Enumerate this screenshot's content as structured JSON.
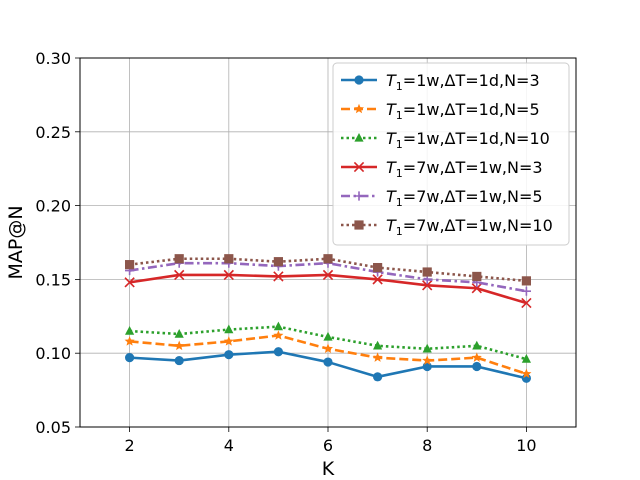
{
  "chart_data": {
    "type": "line",
    "xlabel": "K",
    "ylabel": "MAP@N",
    "xlim": [
      1,
      11
    ],
    "ylim": [
      0.05,
      0.3
    ],
    "grid": true,
    "legend_position": "top-right",
    "x_ticks": [
      "2",
      "4",
      "6",
      "8",
      "10"
    ],
    "y_ticks": [
      "0.05",
      "0.10",
      "0.15",
      "0.20",
      "0.25",
      "0.30"
    ],
    "x": [
      2,
      3,
      4,
      5,
      6,
      7,
      8,
      9,
      10
    ],
    "series": [
      {
        "name": "T1=1w,ΔT=1d,N=3",
        "legend": {
          "t": "T",
          "sub": "1",
          "rest": "=1w,ΔT=1d,N=3"
        },
        "color": "#1f77b4",
        "dash": "solid",
        "marker": "circle",
        "values": [
          0.097,
          0.095,
          0.099,
          0.101,
          0.094,
          0.084,
          0.091,
          0.091,
          0.083
        ]
      },
      {
        "name": "T1=1w,ΔT=1d,N=5",
        "legend": {
          "t": "T",
          "sub": "1",
          "rest": "=1w,ΔT=1d,N=5"
        },
        "color": "#ff7f0e",
        "dash": "dashed",
        "marker": "star",
        "values": [
          0.108,
          0.105,
          0.108,
          0.112,
          0.103,
          0.097,
          0.095,
          0.097,
          0.086
        ]
      },
      {
        "name": "T1=1w,ΔT=1d,N=10",
        "legend": {
          "t": "T",
          "sub": "1",
          "rest": "=1w,ΔT=1d,N=10"
        },
        "color": "#2ca02c",
        "dash": "dotted",
        "marker": "triangle",
        "values": [
          0.115,
          0.113,
          0.116,
          0.118,
          0.111,
          0.105,
          0.103,
          0.105,
          0.096
        ]
      },
      {
        "name": "T1=7w,ΔT=1w,N=3",
        "legend": {
          "t": "T",
          "sub": "1",
          "rest": "=7w,ΔT=1w,N=3"
        },
        "color": "#d62728",
        "dash": "solid",
        "marker": "x",
        "values": [
          0.148,
          0.153,
          0.153,
          0.152,
          0.153,
          0.15,
          0.146,
          0.144,
          0.134
        ]
      },
      {
        "name": "T1=7w,ΔT=1w,N=5",
        "legend": {
          "t": "T",
          "sub": "1",
          "rest": "=7w,ΔT=1w,N=5"
        },
        "color": "#9467bd",
        "dash": "dashdot",
        "marker": "plus",
        "values": [
          0.156,
          0.161,
          0.161,
          0.159,
          0.161,
          0.155,
          0.15,
          0.148,
          0.142
        ]
      },
      {
        "name": "T1=7w,ΔT=1w,N=10",
        "legend": {
          "t": "T",
          "sub": "1",
          "rest": "=7w,ΔT=1w,N=10"
        },
        "color": "#8c564b",
        "dash": "dotted",
        "marker": "square",
        "values": [
          0.16,
          0.164,
          0.164,
          0.162,
          0.164,
          0.158,
          0.155,
          0.152,
          0.149
        ]
      }
    ]
  }
}
